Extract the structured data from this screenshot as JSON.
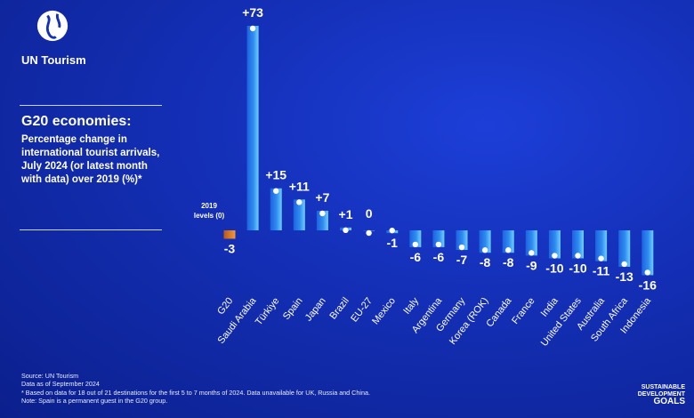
{
  "brand": {
    "name": "UN Tourism",
    "logo_icon": "un-tourism-globe-icon"
  },
  "heading": {
    "title": "G20 economies:",
    "subtitle": "Percentage change in international tourist arrivals, July 2024 (or latest month with data) over 2019 (%)*"
  },
  "baseline_label": "2019 levels (0)",
  "chart_data": {
    "type": "bar",
    "title": "G20 economies:",
    "subtitle": "Percentage change in international tourist arrivals, July 2024 (or latest month with data) over 2019 (%)*",
    "categories": [
      "G20",
      "Saudi Arabia",
      "Türkiye",
      "Spain",
      "Japan",
      "Brazil",
      "EU-27",
      "Mexico",
      "Italy",
      "Argentina",
      "Germany",
      "Korea (ROK)",
      "Canada",
      "France",
      "India",
      "United States",
      "Australia",
      "South Africa",
      "Indonesia"
    ],
    "values": [
      -3,
      73,
      15,
      11,
      7,
      1,
      0,
      -1,
      -6,
      -6,
      -7,
      -8,
      -8,
      -9,
      -10,
      -10,
      -11,
      -13,
      -16
    ],
    "data_labels": [
      "-3",
      "+73",
      "+15",
      "+11",
      "+7",
      "+1",
      "0",
      "-1",
      "-6",
      "-6",
      "-7",
      "-8",
      "-8",
      "-9",
      "-10",
      "-10",
      "-11",
      "-13",
      "-16"
    ],
    "baseline": 0,
    "ylim": [
      -16,
      73
    ],
    "grid": false,
    "colors": {
      "highlight": "#e07b1f",
      "bar": "#2f8cf0",
      "bar_light": "#6fd0ff",
      "marker": "#ffffff"
    }
  },
  "footer": {
    "source": "Source: UN Tourism",
    "date": "Data as of September 2024",
    "note1": "* Based on data for 18 out of 21 destinations for the first 5 to 7 months of 2024. Data unavailable for UK, Russia and China.",
    "note2": "Note: Spain is a permanent guest in the G20 group."
  },
  "sdg": {
    "line1": "SUSTAINABLE",
    "line2": "DEVELOPMENT",
    "line3": "GOALS",
    "icon": "un-emblem-icon"
  }
}
